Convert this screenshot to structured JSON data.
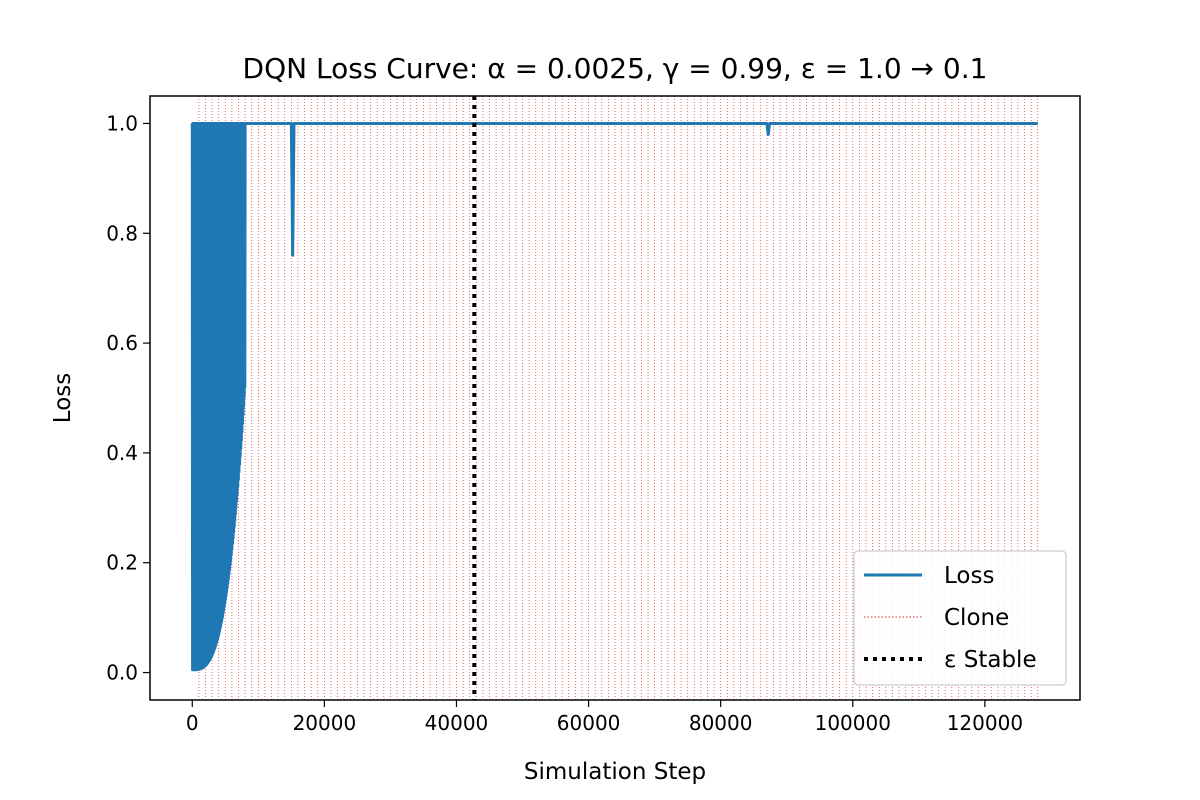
{
  "chart_data": {
    "type": "line",
    "title": "DQN Loss Curve: α = 0.0025, γ = 0.99, ε = 1.0 → 0.1",
    "xlabel": "Simulation Step",
    "ylabel": "Loss",
    "xlim": [
      -6400,
      134400
    ],
    "ylim": [
      -0.05,
      1.05
    ],
    "xticks": [
      0,
      20000,
      40000,
      60000,
      80000,
      100000,
      120000
    ],
    "yticks": [
      0.0,
      0.2,
      0.4,
      0.6,
      0.8,
      1.0
    ],
    "ytick_labels": [
      "0.0",
      "0.2",
      "0.4",
      "0.6",
      "0.8",
      "1.0"
    ],
    "grid": false,
    "legend_position": "lower-right",
    "series": [
      {
        "name": "Loss",
        "color": "#1f77b4",
        "style": "solid",
        "oscillation": {
          "x_start": 0,
          "x_end": 8000,
          "high": 1.0,
          "low_start": 0.005,
          "low_end": 0.52,
          "cycles": 90
        },
        "x": [
          8000,
          15000,
          15200,
          15400,
          87000,
          87200,
          87400,
          128000
        ],
        "y": [
          1.0,
          1.0,
          0.76,
          1.0,
          1.0,
          0.98,
          1.0,
          1.0
        ]
      },
      {
        "name": "Clone",
        "color": "#d62728",
        "style": "dotted",
        "vlines": {
          "start": 1000,
          "end": 128000,
          "step": 1000
        }
      },
      {
        "name": "ε Stable",
        "color": "#000000",
        "style": "dotted-thick",
        "vline_x": 42700
      }
    ]
  }
}
